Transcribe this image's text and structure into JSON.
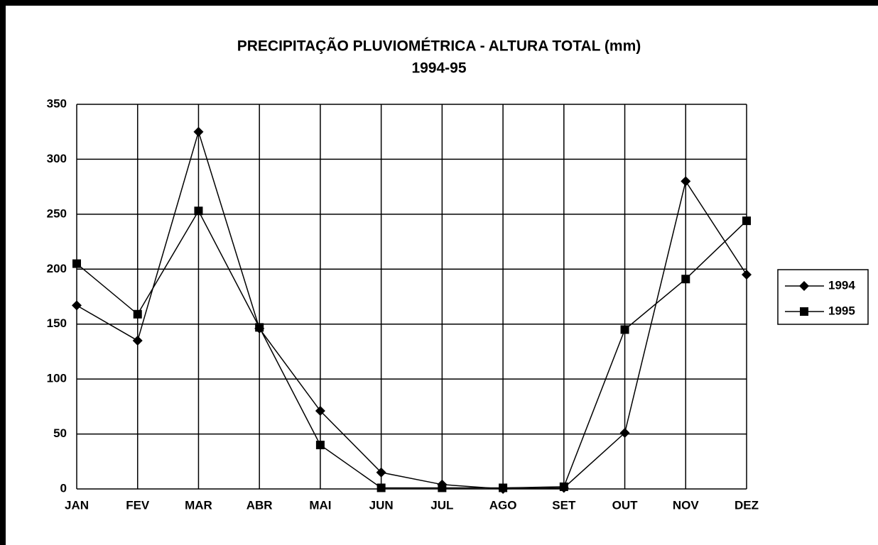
{
  "chart_data": {
    "type": "line",
    "title": "PRECIPITAÇÃO PLUVIOMÉTRICA - ALTURA TOTAL (mm)",
    "subtitle": "1994-95",
    "categories": [
      "JAN",
      "FEV",
      "MAR",
      "ABR",
      "MAI",
      "JUN",
      "JUL",
      "AGO",
      "SET",
      "OUT",
      "NOV",
      "DEZ"
    ],
    "series": [
      {
        "name": "1994",
        "color": "#000000",
        "marker": "diamond",
        "values": [
          167,
          135,
          325,
          146,
          71,
          15,
          4,
          0,
          1,
          51,
          280,
          195
        ]
      },
      {
        "name": "1995",
        "color": "#000000",
        "marker": "square",
        "values": [
          205,
          159,
          253,
          147,
          40,
          1,
          1,
          1,
          2,
          145,
          191,
          244
        ]
      }
    ],
    "ylim": [
      0,
      350
    ],
    "yticks": [
      0,
      50,
      100,
      150,
      200,
      250,
      300,
      350
    ],
    "grid": true,
    "legend": "right"
  }
}
